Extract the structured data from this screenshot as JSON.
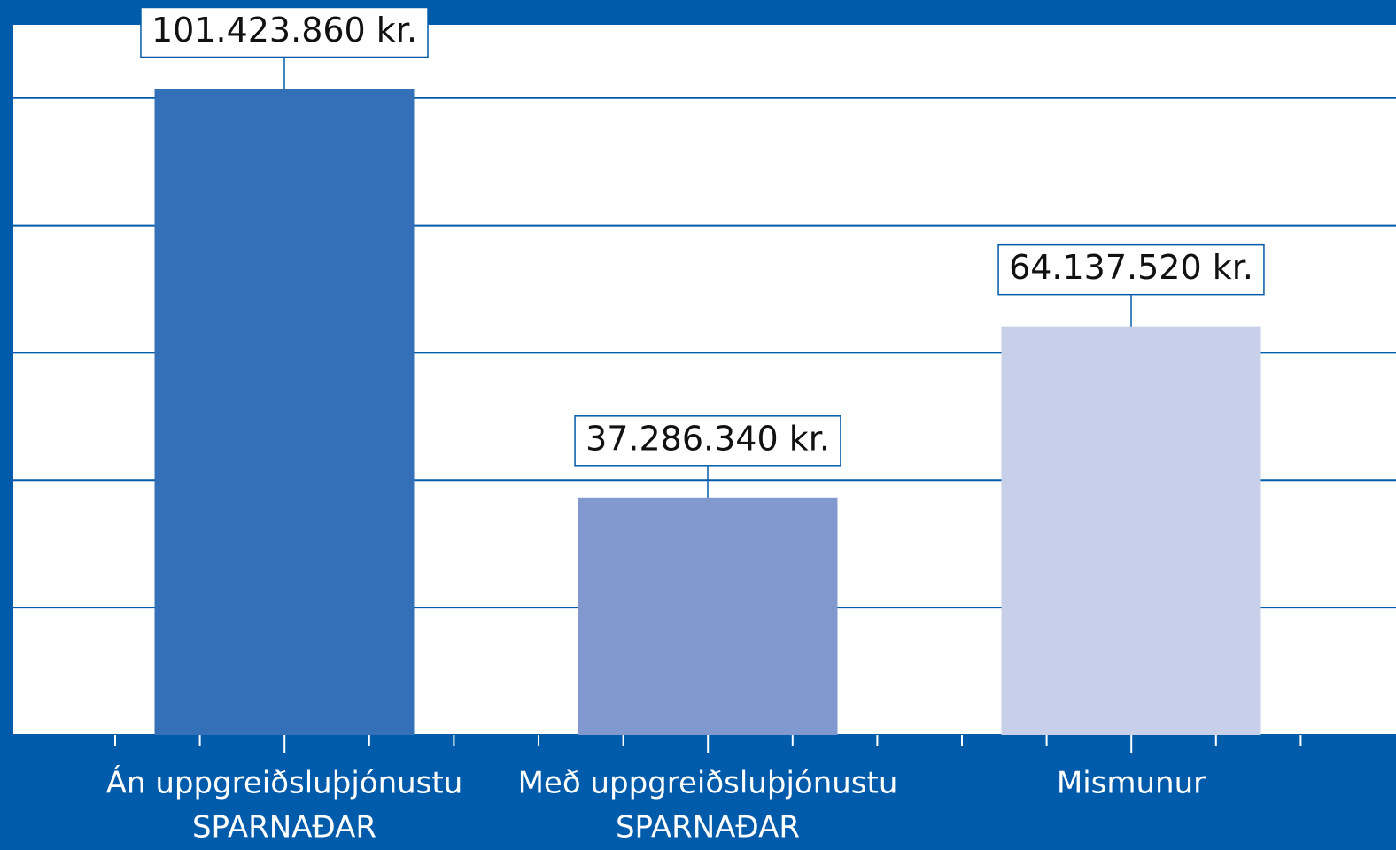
{
  "chart_data": {
    "type": "bar",
    "categories": [
      [
        "Án uppgreiðsluþjónustu",
        "SPARNAÐAR"
      ],
      [
        "Með uppgreiðsluþjónustu",
        "SPARNAÐAR"
      ],
      [
        "Mismunur"
      ]
    ],
    "values": [
      101423860,
      37286340,
      64137520
    ],
    "value_labels": [
      "101.423.860 kr.",
      "37.286.340 kr.",
      "64.137.520 kr."
    ],
    "colors": [
      "#3470b8",
      "#8299cf",
      "#c7cfe9"
    ],
    "ylim": [
      0,
      111500000
    ],
    "yticks": [
      0,
      20000000,
      40000000,
      60000000,
      80000000,
      100000000
    ],
    "grid": true
  }
}
